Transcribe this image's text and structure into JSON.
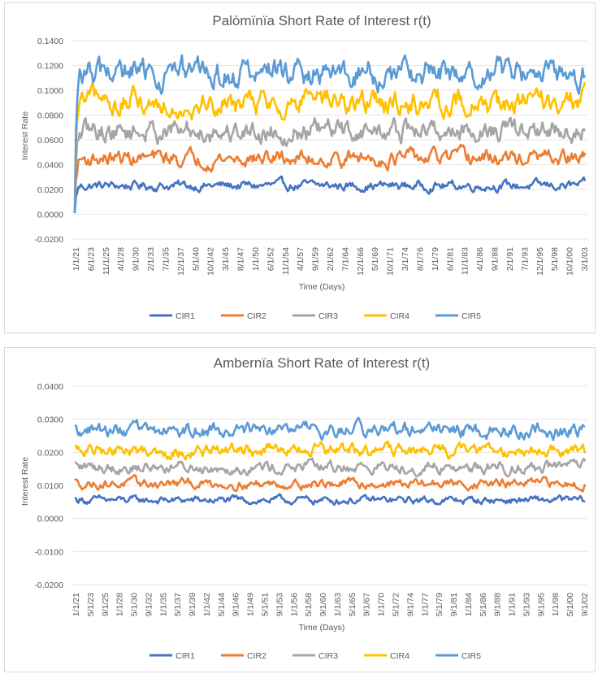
{
  "chart_data": [
    {
      "type": "line",
      "title": "Palòmïnïa Short Rate of Interest r(t)",
      "xlabel": "Time (Days)",
      "ylabel": "Interest Rate",
      "ylim": [
        -0.02,
        0.14
      ],
      "yticks": [
        "0.1400",
        "0.1200",
        "0.1000",
        "0.0800",
        "0.0600",
        "0.0400",
        "0.0200",
        "0.0000",
        "-0.0200"
      ],
      "x_tick_labels": [
        "1/1/21",
        "6/1/23",
        "11/1/25",
        "4/1/28",
        "9/1/30",
        "2/1/33",
        "7/1/35",
        "12/1/37",
        "5/1/40",
        "10/1/42",
        "3/1/45",
        "8/1/47",
        "1/1/50",
        "6/1/52",
        "11/1/54",
        "4/1/57",
        "9/1/59",
        "2/1/62",
        "7/1/64",
        "12/1/66",
        "5/1/69",
        "10/1/71",
        "3/1/74",
        "8/1/76",
        "1/1/79",
        "6/1/81",
        "11/1/83",
        "4/1/86",
        "9/1/88",
        "2/1/91",
        "7/1/93",
        "12/1/95",
        "5/1/98",
        "10/1/00",
        "3/1/03"
      ],
      "grid": true,
      "legend": "bottom",
      "series": [
        {
          "name": "CIR1",
          "color": "#4472C4",
          "start": 0.001,
          "mean": 0.023,
          "amplitude": 0.003
        },
        {
          "name": "CIR2",
          "color": "#ED7D31",
          "start": 0.001,
          "mean": 0.045,
          "amplitude": 0.005
        },
        {
          "name": "CIR3",
          "color": "#A5A5A5",
          "start": 0.001,
          "mean": 0.067,
          "amplitude": 0.007
        },
        {
          "name": "CIR4",
          "color": "#FFC000",
          "start": 0.001,
          "mean": 0.09,
          "amplitude": 0.008
        },
        {
          "name": "CIR5",
          "color": "#5B9BD5",
          "start": 0.001,
          "mean": 0.113,
          "amplitude": 0.009
        }
      ]
    },
    {
      "type": "line",
      "title": "Ambernïa Short Rate of Interest r(t)",
      "xlabel": "Time (Days)",
      "ylabel": "Interest Rate",
      "ylim": [
        -0.02,
        0.04
      ],
      "yticks": [
        "0.0400",
        "0.0300",
        "0.0200",
        "0.0100",
        "0.0000",
        "-0.0100",
        "-0.0200"
      ],
      "x_tick_labels": [
        "1/1/21",
        "5/1/23",
        "9/1/25",
        "1/1/28",
        "5/1/30",
        "9/1/32",
        "1/1/35",
        "5/1/37",
        "9/1/39",
        "1/1/42",
        "5/1/44",
        "9/1/46",
        "1/1/49",
        "5/1/51",
        "9/1/53",
        "1/1/56",
        "5/1/58",
        "9/1/60",
        "1/1/63",
        "5/1/65",
        "9/1/67",
        "1/1/70",
        "5/1/72",
        "9/1/74",
        "1/1/77",
        "5/1/79",
        "9/1/81",
        "1/1/84",
        "5/1/86",
        "9/1/88",
        "1/1/91",
        "5/1/93",
        "9/1/95",
        "1/1/98",
        "5/1/00",
        "9/1/02"
      ],
      "grid": true,
      "legend": "bottom",
      "series": [
        {
          "name": "CIR1",
          "color": "#4472C4",
          "start": 0.006,
          "mean": 0.0055,
          "amplitude": 0.0009
        },
        {
          "name": "CIR2",
          "color": "#ED7D31",
          "start": 0.012,
          "mean": 0.0105,
          "amplitude": 0.0011
        },
        {
          "name": "CIR3",
          "color": "#A5A5A5",
          "start": 0.017,
          "mean": 0.0155,
          "amplitude": 0.0014
        },
        {
          "name": "CIR4",
          "color": "#FFC000",
          "start": 0.022,
          "mean": 0.0205,
          "amplitude": 0.0015
        },
        {
          "name": "CIR5",
          "color": "#5B9BD5",
          "start": 0.028,
          "mean": 0.0265,
          "amplitude": 0.0017
        }
      ]
    }
  ]
}
